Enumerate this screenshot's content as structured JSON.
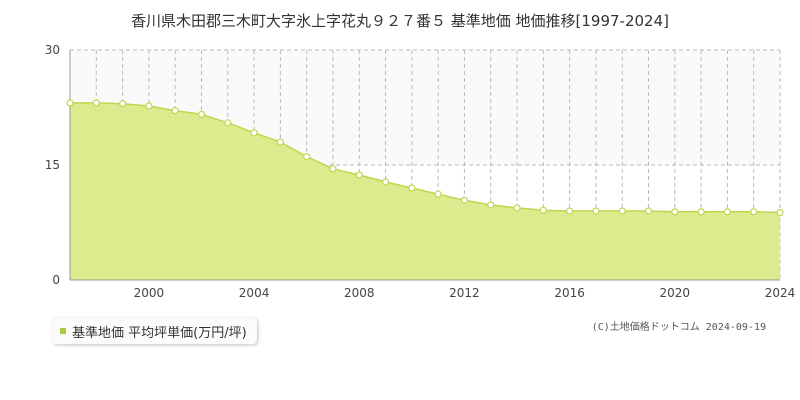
{
  "title": "香川県木田郡三木町大字氷上字花丸９２７番５ 基準地価 地価推移[1997-2024]",
  "legend": {
    "label": "基準地価 平均坪単価(万円/坪)"
  },
  "credit": "(C)土地価格ドットコム 2024-09-19",
  "colors": {
    "area_fill": "#dbeb8d",
    "line": "#bcd84e",
    "marker": "#ffffff",
    "grid": "#bbbbbb",
    "legend_swatch": "#a8cc3a"
  },
  "chart_data": {
    "type": "area",
    "x": [
      1997,
      1998,
      1999,
      2000,
      2001,
      2002,
      2003,
      2004,
      2005,
      2006,
      2007,
      2008,
      2009,
      2010,
      2011,
      2012,
      2013,
      2014,
      2015,
      2016,
      2017,
      2018,
      2019,
      2020,
      2021,
      2022,
      2023,
      2024
    ],
    "series": [
      {
        "name": "基準地価 平均坪単価(万円/坪)",
        "values": [
          23.1,
          23.1,
          23.0,
          22.7,
          22.1,
          21.6,
          20.5,
          19.2,
          18.0,
          16.1,
          14.5,
          13.7,
          12.8,
          12.0,
          11.2,
          10.4,
          9.8,
          9.4,
          9.1,
          9.0,
          9.0,
          9.0,
          9.0,
          8.9,
          8.9,
          8.9,
          8.9,
          8.8
        ]
      }
    ],
    "xticks": [
      2000,
      2004,
      2008,
      2012,
      2016,
      2020,
      2024
    ],
    "yticks": [
      0,
      15,
      30
    ],
    "xlim": [
      1997,
      2024
    ],
    "ylim": [
      0,
      30
    ],
    "grid": true
  }
}
